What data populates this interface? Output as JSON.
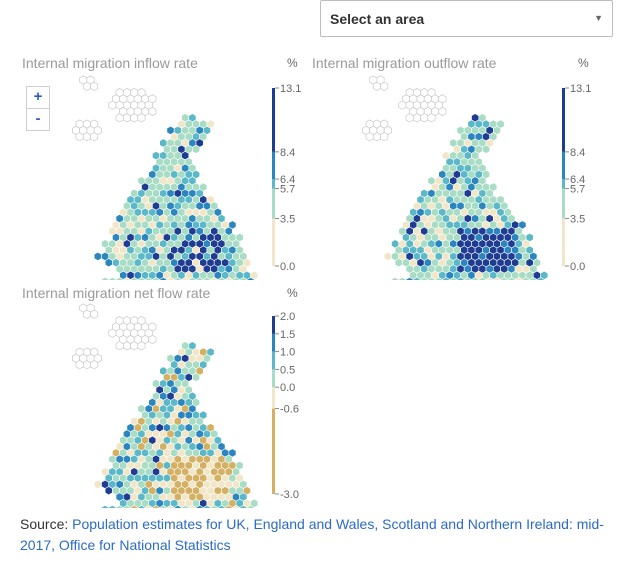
{
  "area_select": {
    "value": "Select an area"
  },
  "zoom": {
    "in_label": "+",
    "out_label": "-"
  },
  "panels": {
    "inflow": {
      "title": "Internal migration inflow rate",
      "unit": "%"
    },
    "outflow": {
      "title": "Internal migration outflow rate",
      "unit": "%"
    },
    "net": {
      "title": "Internal migration net flow rate",
      "unit": "%"
    }
  },
  "legends": {
    "inflow": {
      "min": 0.0,
      "max": 13.1,
      "stops": [
        {
          "label": "13.1",
          "value": 13.1
        },
        {
          "label": "8.4",
          "value": 8.4
        },
        {
          "label": "6.4",
          "value": 6.4
        },
        {
          "label": "5.7",
          "value": 5.7
        },
        {
          "label": "3.5",
          "value": 3.5
        },
        {
          "label": "0.0",
          "value": 0.0
        }
      ],
      "colors": [
        "#f2e6c8",
        "#a8dcc4",
        "#5ab8c8",
        "#2b86bf",
        "#1f3c93"
      ]
    },
    "outflow": {
      "min": 0.0,
      "max": 13.1,
      "stops": [
        {
          "label": "13.1",
          "value": 13.1
        },
        {
          "label": "8.4",
          "value": 8.4
        },
        {
          "label": "6.4",
          "value": 6.4
        },
        {
          "label": "5.7",
          "value": 5.7
        },
        {
          "label": "3.5",
          "value": 3.5
        },
        {
          "label": "0.0",
          "value": 0.0
        }
      ],
      "colors": [
        "#f2e6c8",
        "#a8dcc4",
        "#5ab8c8",
        "#2b86bf",
        "#1f3c93"
      ]
    },
    "net": {
      "min": -3.0,
      "max": 2.0,
      "stops": [
        {
          "label": "2.0",
          "value": 2.0
        },
        {
          "label": "1.5",
          "value": 1.5
        },
        {
          "label": "1.0",
          "value": 1.0
        },
        {
          "label": "0.5",
          "value": 0.5
        },
        {
          "label": "0.0",
          "value": 0.0
        },
        {
          "label": "-0.6",
          "value": -0.6
        },
        {
          "label": "-3.0",
          "value": -3.0
        }
      ],
      "colors": [
        "#d4b063",
        "#f2e6c8",
        "#a8dcc4",
        "#5ab8c8",
        "#2b86bf",
        "#1f3c93"
      ]
    }
  },
  "source": {
    "prefix": "Source: ",
    "link_text": "Population estimates for UK, England and Wales, Scotland and Northern Ireland: mid-2017, Office for National Statistics"
  }
}
